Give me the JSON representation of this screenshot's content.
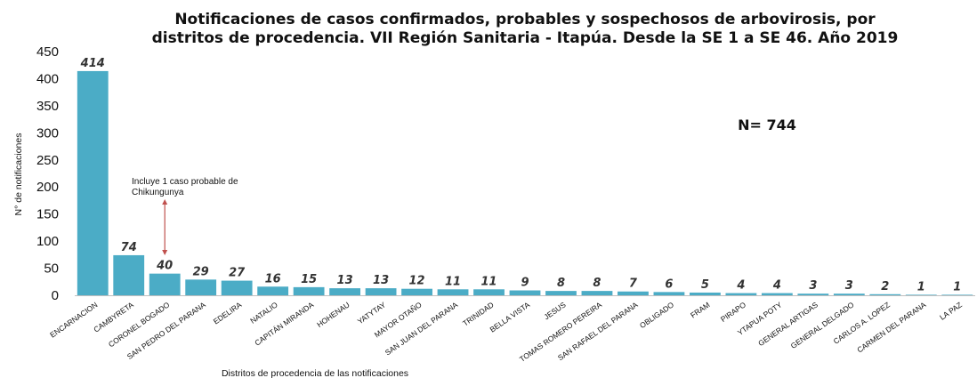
{
  "chart_data": {
    "type": "bar",
    "title_line1": "Notificaciones de casos confirmados, probables y sospechosos de arbovirosis, por",
    "title_line2": "distritos de procedencia.  VII Región Sanitaria - Itapúa. Desde la SE 1 a SE 46. Año 2019",
    "xlabel": "Distritos de procedencia de las notificaciones",
    "ylabel": "N° de notificaciones",
    "ylim": [
      0,
      450
    ],
    "yticks": [
      0,
      50,
      100,
      150,
      200,
      250,
      300,
      350,
      400,
      450
    ],
    "grid": false,
    "legend": "none",
    "bar_color": "#4bacc6",
    "annotation": "Incluye 1 caso probable de Chikungunya",
    "annotation_line1": "Incluye 1 caso probable de",
    "annotation_line2": "Chikungunya",
    "annotation_target": "CORONEL BOGADO",
    "annotation_color": "#c0504d",
    "n_label": "N= 744",
    "categories": [
      "ENCARNACION",
      "CAMBYRETA",
      "CORONEL BOGADO",
      "SAN PEDRO DEL PARANA",
      "EDELIRA",
      "NATALIO",
      "CAPITÁN MIRANDA",
      "HOHENAU",
      "YATYTAY",
      "MAYOR OTAÑO",
      "SAN JUAN DEL PARANA",
      "TRINIDAD",
      "BELLA VISTA",
      "JESUS",
      "TOMAS ROMERO PEREIRA",
      "SAN RAFAEL DEL PARANA",
      "OBLIGADO",
      "FRAM",
      "PIRAPO",
      "YTAPUA POTY",
      "GENERAL ARTIGAS",
      "GENERAL DELGADO",
      "CARLOS A. LOPEZ",
      "CARMEN DEL PARANA",
      "LA PAZ"
    ],
    "values": [
      414,
      74,
      40,
      29,
      27,
      16,
      15,
      13,
      13,
      12,
      11,
      11,
      9,
      8,
      8,
      7,
      6,
      5,
      4,
      4,
      3,
      3,
      2,
      1,
      1
    ]
  }
}
